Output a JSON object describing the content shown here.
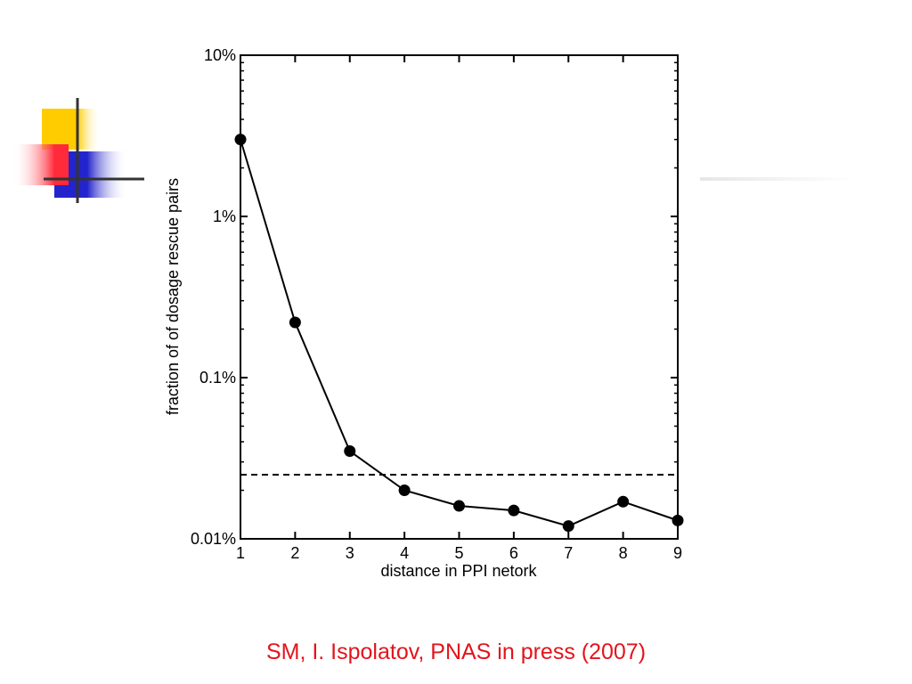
{
  "slide": {
    "citation": "SM, I. Ispolatov, PNAS in press (2007)"
  },
  "colors": {
    "citation": "#e3141c",
    "series": "#000000",
    "logo_yellow": "#ffcc00",
    "logo_red": "#ff2a3a",
    "logo_blue": "#2424cc",
    "logo_lines": "#333333"
  },
  "chart_data": {
    "type": "line",
    "title": "",
    "xlabel": "distance in PPI netork",
    "ylabel": "fraction of of dosage rescue pairs",
    "yscale": "log",
    "xlim": [
      1,
      9
    ],
    "ylim": [
      0.01,
      10
    ],
    "x_ticks": [
      1,
      2,
      3,
      4,
      5,
      6,
      7,
      8,
      9
    ],
    "x_tick_labels": [
      "1",
      "2",
      "3",
      "4",
      "5",
      "6",
      "7",
      "8",
      "9"
    ],
    "y_ticks": [
      0.01,
      0.1,
      1,
      10
    ],
    "y_tick_labels": [
      "0.01%",
      "0.1%",
      "1%",
      "10%"
    ],
    "grid": false,
    "legend": "none",
    "series": [
      {
        "marker": "filled-circle",
        "x": [
          1,
          2,
          3,
          4,
          5,
          6,
          7,
          8,
          9
        ],
        "values": [
          3.0,
          0.22,
          0.035,
          0.02,
          0.016,
          0.015,
          0.012,
          0.017,
          0.013
        ]
      }
    ],
    "reference_line": {
      "y": 0.025,
      "style": "dashed"
    }
  }
}
